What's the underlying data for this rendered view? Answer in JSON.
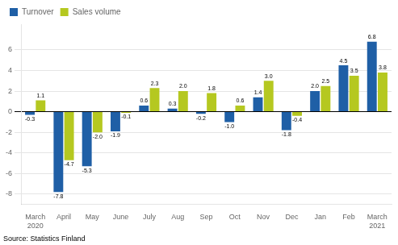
{
  "chart_data": {
    "type": "bar",
    "categories": [
      "March\n2020",
      "April",
      "May",
      "June",
      "July",
      "Aug",
      "Sep",
      "Oct",
      "Nov",
      "Dec",
      "Jan",
      "Feb",
      "March\n2021"
    ],
    "series": [
      {
        "name": "Turnover",
        "color": "#1f5fa6",
        "values": [
          -0.3,
          -7.8,
          -5.3,
          -1.9,
          0.6,
          0.3,
          -0.2,
          -1.0,
          1.4,
          -1.8,
          2.0,
          4.5,
          6.8
        ],
        "value_labels": [
          "-0.3",
          "-7.8",
          "-5.3",
          "-1.9",
          "0.6",
          "0.3",
          "-0.2",
          "-1.0",
          "1.4",
          "-1.8",
          "2.0",
          "4.5",
          "6.8"
        ]
      },
      {
        "name": "Sales volume",
        "color": "#b5c820",
        "values": [
          1.1,
          -4.7,
          -2.0,
          -0.1,
          2.3,
          2.0,
          1.8,
          0.6,
          3.0,
          -0.4,
          2.5,
          3.5,
          3.8
        ],
        "value_labels": [
          "1.1",
          "-4.7",
          "-2.0",
          "-0.1",
          "2.3",
          "2.0",
          "1.8",
          "0.6",
          "3.0",
          "-0.4",
          "2.5",
          "3.5",
          "3.8"
        ]
      }
    ],
    "ylim": [
      -9,
      8.5
    ],
    "yticks": [
      -8,
      -6,
      -4,
      -2,
      0,
      2,
      4,
      6
    ],
    "grid": true,
    "legend": "upper left",
    "data_labels": true,
    "annotations": [
      "Source: Statistics Finland"
    ]
  }
}
